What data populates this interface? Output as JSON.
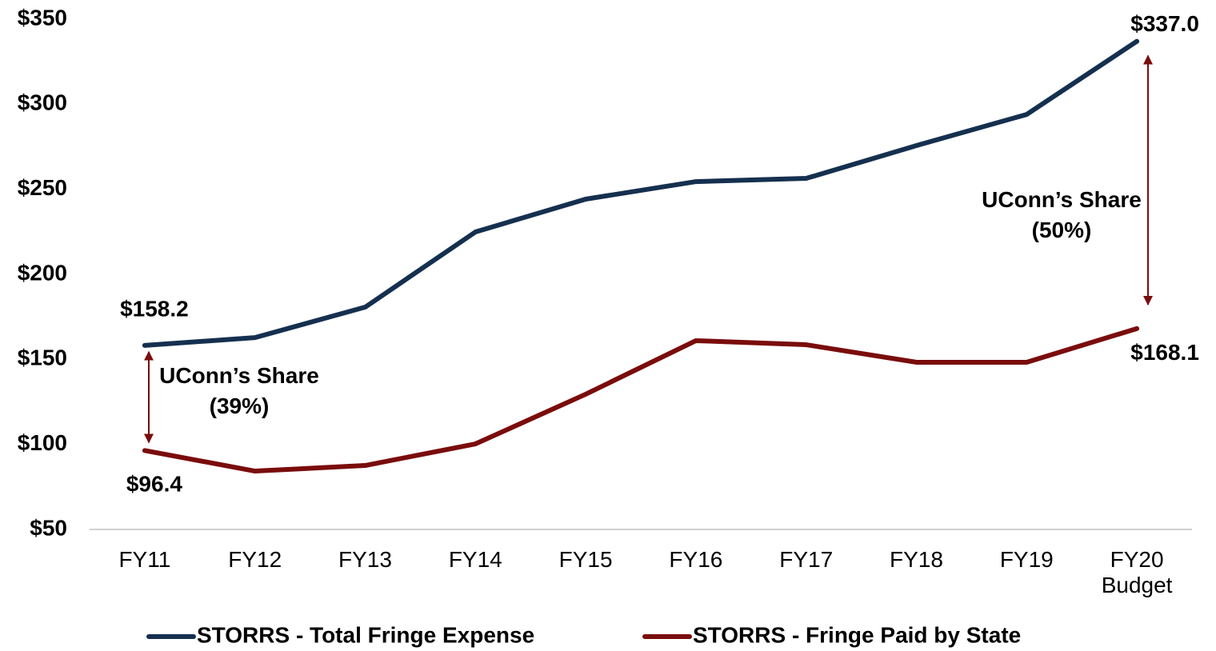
{
  "chart_data": {
    "type": "line",
    "categories": [
      "FY11",
      "FY12",
      "FY13",
      "FY14",
      "FY15",
      "FY16",
      "FY17",
      "FY18",
      "FY19",
      "FY20 Budget"
    ],
    "series": [
      {
        "name": "STORRS - Total Fringe Expense",
        "color": "#15304f",
        "values": [
          158.2,
          162.8,
          180.7,
          224.9,
          244.2,
          254.5,
          256.4,
          275.7,
          294.0,
          337.0
        ],
        "value_labels": [
          "$158.2",
          null,
          null,
          null,
          null,
          null,
          null,
          null,
          null,
          "$337.0"
        ]
      },
      {
        "name": "STORRS - Fringe Paid by State",
        "color": "#7a0c0c",
        "values": [
          96.4,
          84.3,
          87.6,
          100.3,
          129.5,
          161.0,
          158.6,
          148.3,
          148.3,
          168.1
        ],
        "value_labels": [
          "$96.4",
          null,
          null,
          null,
          null,
          null,
          null,
          null,
          null,
          "$168.1"
        ]
      }
    ],
    "ylim": [
      50,
      350
    ],
    "yticks": [
      {
        "value": 50,
        "label": "$50"
      },
      {
        "value": 100,
        "label": "$100"
      },
      {
        "value": 150,
        "label": "$150"
      },
      {
        "value": 200,
        "label": "$200"
      },
      {
        "value": 250,
        "label": "$250"
      },
      {
        "value": 300,
        "label": "$300"
      },
      {
        "value": 350,
        "label": "$350"
      }
    ],
    "grid": false,
    "legend": "bottom",
    "annotations": [
      "UConn’s Share (39%)",
      "UConn’s Share (50%)"
    ]
  }
}
